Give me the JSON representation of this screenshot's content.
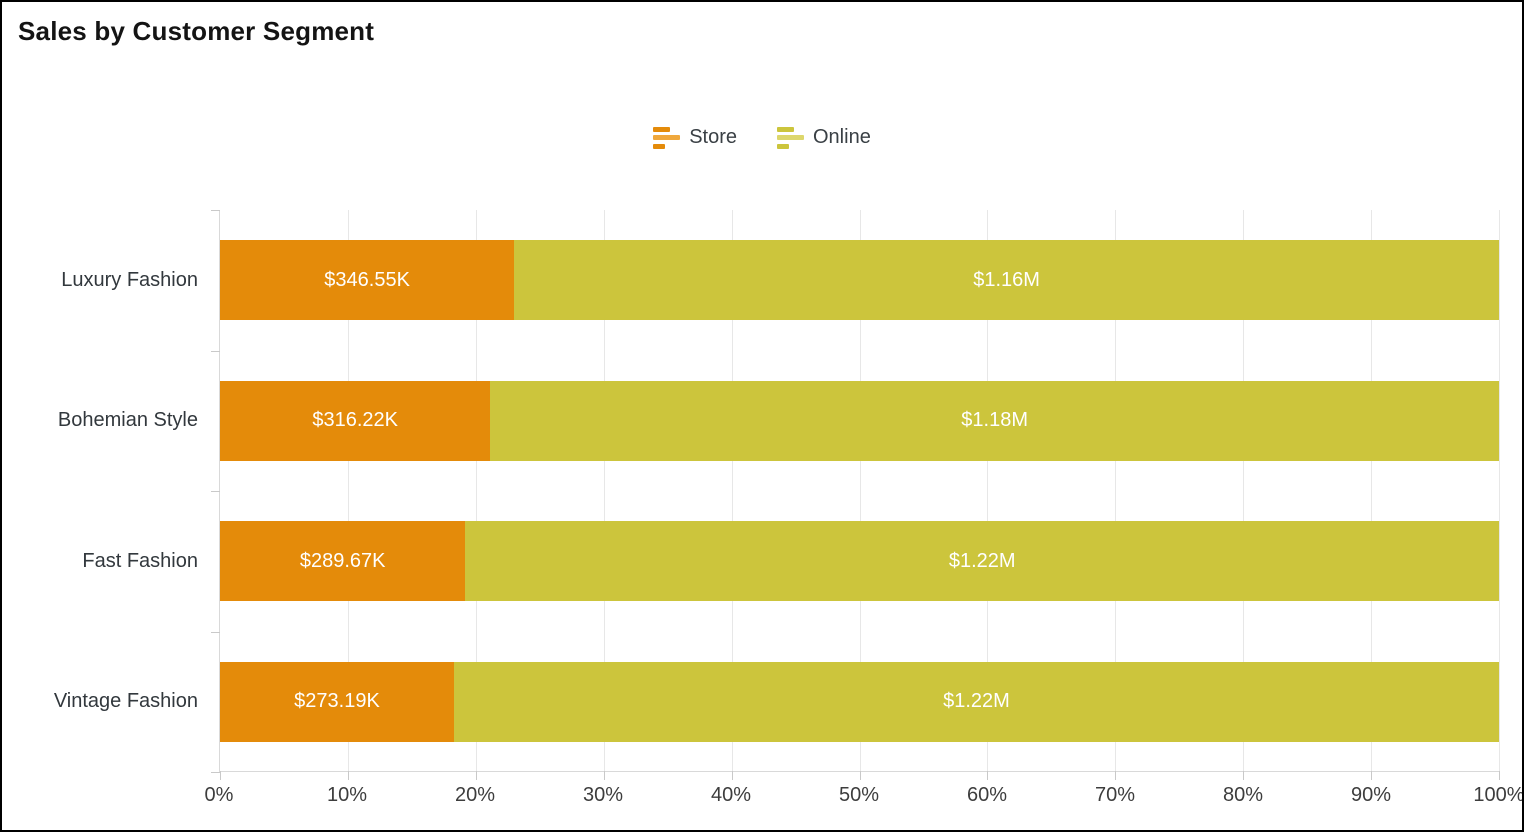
{
  "title": "Sales by Customer Segment",
  "legend": {
    "items": [
      {
        "label": "Store",
        "color": "#e48b0a",
        "color_light": "#f0a83c"
      },
      {
        "label": "Online",
        "color": "#ccc53c",
        "color_light": "#ddd76c"
      }
    ]
  },
  "chart_data": {
    "type": "bar",
    "orientation": "horizontal",
    "stacked_percent": true,
    "title": "Sales by Customer Segment",
    "categories": [
      "Luxury Fashion",
      "Bohemian Style",
      "Fast Fashion",
      "Vintage Fashion"
    ],
    "series": [
      {
        "name": "Store",
        "color": "#e48b0a",
        "values": [
          346550,
          316220,
          289670,
          273190
        ],
        "labels": [
          "$346.55K",
          "$316.22K",
          "$289.67K",
          "$273.19K"
        ]
      },
      {
        "name": "Online",
        "color": "#ccc53c",
        "values": [
          1160000,
          1180000,
          1220000,
          1220000
        ],
        "labels": [
          "$1.16M",
          "$1.18M",
          "$1.22M",
          "$1.22M"
        ]
      }
    ],
    "x_axis": {
      "min": 0,
      "max": 100,
      "tick_labels": [
        "0%",
        "10%",
        "20%",
        "30%",
        "40%",
        "50%",
        "60%",
        "70%",
        "80%",
        "90%",
        "100%"
      ]
    },
    "legend_position": "top-center",
    "grid": "vertical-only"
  }
}
